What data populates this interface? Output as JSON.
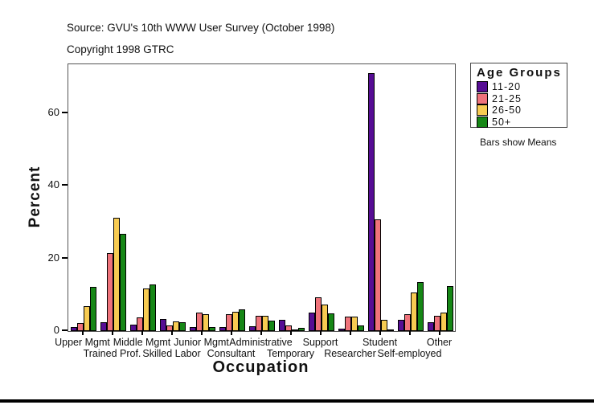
{
  "header": {
    "source_line": "Source: GVU's 10th WWW User Survey (October 1998)",
    "copyright_line": "Copyright 1998 GTRC"
  },
  "chart_data": {
    "type": "bar",
    "title": "",
    "xlabel": "Occupation",
    "ylabel": "Percent",
    "ylim": [
      0,
      73.5
    ],
    "yticks": [
      0,
      20,
      40,
      60
    ],
    "grid": false,
    "legend_position": "right",
    "legend_title": "Age Groups",
    "note": "Bars show Means",
    "categories": [
      "Upper Mgmt",
      "Trained Prof.",
      "Middle Mgmt",
      "Skilled Labor",
      "Junior Mgmt",
      "Consultant",
      "Administrative",
      "Temporary",
      "Support",
      "Researcher",
      "Student",
      "Self-employed",
      "Other"
    ],
    "series": [
      {
        "name": "11-20",
        "color": "#560D94",
        "values": [
          1.0,
          2.4,
          1.7,
          3.3,
          1.0,
          1.1,
          1.3,
          3.2,
          5.2,
          0.7,
          71.0,
          3.1,
          2.5
        ]
      },
      {
        "name": "21-25",
        "color": "#EF737B",
        "values": [
          2.3,
          21.5,
          3.8,
          1.5,
          5.0,
          4.7,
          4.3,
          1.5,
          9.3,
          3.9,
          30.8,
          4.7,
          4.2
        ]
      },
      {
        "name": "26-50",
        "color": "#F7CB52",
        "values": [
          6.8,
          31.3,
          11.8,
          2.6,
          4.6,
          5.3,
          4.3,
          0.5,
          7.2,
          3.9,
          3.2,
          10.6,
          5.1
        ]
      },
      {
        "name": "50+",
        "color": "#168716",
        "values": [
          12.2,
          26.8,
          12.8,
          2.5,
          1.0,
          6.0,
          2.8,
          0.9,
          4.8,
          1.6,
          0.5,
          13.6,
          12.4
        ]
      }
    ]
  }
}
